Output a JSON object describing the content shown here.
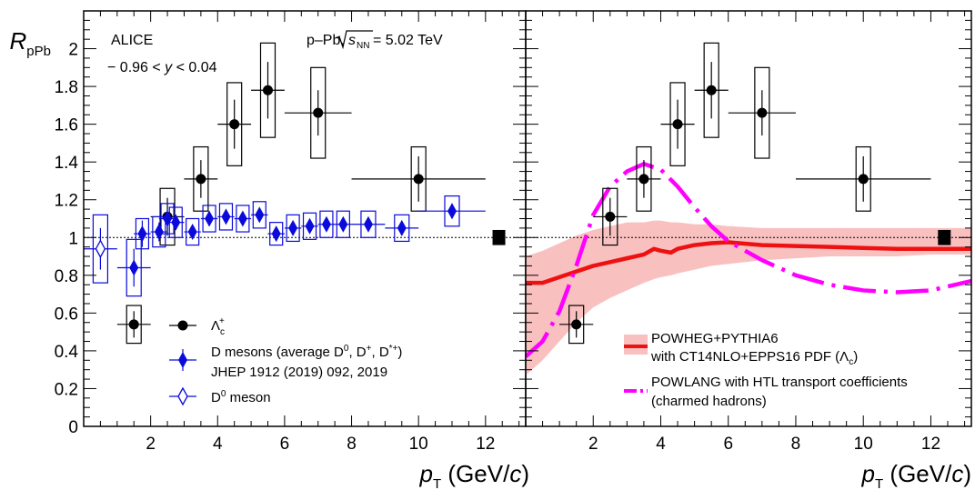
{
  "colors": {
    "lambda_c": "#000000",
    "d_mesons": "#0a0adc",
    "d0_meson": "#0a0adc",
    "powheg_line": "#ee1111",
    "powheg_band": "#f9c0c0",
    "powlang": "#ff00ff",
    "reference": "#000000"
  },
  "chart_data": [
    {
      "type": "scatter",
      "panel": "left",
      "ylabel": "R_pPb",
      "ylabel_main": "R",
      "ylabel_sub": "pPb",
      "xlabel": "p_T (GeV/c)",
      "xlabel_p": "p",
      "xlabel_sub": "T",
      "xlabel_unit_open": " (GeV/",
      "xlabel_unit_c": "c",
      "xlabel_unit_close": ")",
      "xlim": [
        0,
        13.2
      ],
      "ylim": [
        0,
        2.2
      ],
      "xticks": [
        2,
        4,
        6,
        8,
        10,
        12
      ],
      "xtick_labels": [
        "2",
        "4",
        "6",
        "8",
        "10",
        "12"
      ],
      "yticks": [
        0,
        0.2,
        0.4,
        0.6,
        0.8,
        1,
        1.2,
        1.4,
        1.6,
        1.8,
        2
      ],
      "ytick_labels": [
        "0",
        "0.2",
        "0.4",
        "0.6",
        "0.8",
        "1",
        "1.2",
        "1.4",
        "1.6",
        "1.8",
        "2"
      ],
      "reference_line": 1,
      "global_uncertainty_box": {
        "x": 12.4,
        "ylow": 0.96,
        "yhigh": 1.04
      },
      "annotations": {
        "alice": "ALICE",
        "rapidity_prefix": "− 0.96 < ",
        "rapidity_var": "y",
        "rapidity_suffix": " < 0.04",
        "system_prefix": "p–Pb, ",
        "system_s": "s",
        "system_s_sub": "NN",
        "system_suffix": " = 5.02 TeV"
      },
      "legend": {
        "placement": "bottom-center",
        "lambda_main": "Λ",
        "lambda_sub": "c",
        "lambda_sup": "+",
        "dmes_prefix": "D mesons (average D",
        "dmes_sup1": "0",
        "dmes_mid1": ", D",
        "dmes_sup2": "+",
        "dmes_mid2": ", D",
        "dmes_sup3": "*+",
        "dmes_suffix": ")",
        "dmes_ref": "JHEP 1912 (2019) 092, 2019",
        "d0_prefix": "D",
        "d0_sup": "0",
        "d0_suffix": " meson"
      },
      "series": [
        {
          "name": "Λc+",
          "marker": "circle",
          "points": [
            {
              "x": 1.5,
              "y": 0.54,
              "xerr": 0.5,
              "stat": 0.07,
              "syst": 0.1
            },
            {
              "x": 2.5,
              "y": 1.11,
              "xerr": 0.5,
              "stat": 0.1,
              "syst": 0.15
            },
            {
              "x": 3.5,
              "y": 1.31,
              "xerr": 0.5,
              "stat": 0.1,
              "syst": 0.17
            },
            {
              "x": 4.5,
              "y": 1.6,
              "xerr": 0.5,
              "stat": 0.13,
              "syst": 0.22
            },
            {
              "x": 5.5,
              "y": 1.78,
              "xerr": 0.5,
              "stat": 0.15,
              "syst": 0.25
            },
            {
              "x": 7.0,
              "y": 1.66,
              "xerr": 1.0,
              "stat": 0.12,
              "syst": 0.24
            },
            {
              "x": 10.0,
              "y": 1.31,
              "xerr": 2.0,
              "stat": 0.12,
              "syst": 0.17
            }
          ]
        },
        {
          "name": "D mesons (average D0, D+, D*+)",
          "marker": "diamond",
          "points": [
            {
              "x": 1.5,
              "y": 0.84,
              "xerr": 0.5,
              "stat": 0.1,
              "syst": 0.15
            },
            {
              "x": 1.75,
              "y": 1.02,
              "xerr": 0.25,
              "stat": 0.07,
              "syst": 0.08
            },
            {
              "x": 2.25,
              "y": 1.03,
              "xerr": 0.25,
              "stat": 0.05,
              "syst": 0.08
            },
            {
              "x": 2.5,
              "y": 1.1,
              "xerr": 0.25,
              "stat": 0.05,
              "syst": 0.08
            },
            {
              "x": 2.75,
              "y": 1.08,
              "xerr": 0.25,
              "stat": 0.04,
              "syst": 0.08
            },
            {
              "x": 3.25,
              "y": 1.03,
              "xerr": 0.25,
              "stat": 0.03,
              "syst": 0.07
            },
            {
              "x": 3.75,
              "y": 1.1,
              "xerr": 0.25,
              "stat": 0.03,
              "syst": 0.07
            },
            {
              "x": 4.25,
              "y": 1.11,
              "xerr": 0.25,
              "stat": 0.03,
              "syst": 0.07
            },
            {
              "x": 4.75,
              "y": 1.1,
              "xerr": 0.25,
              "stat": 0.03,
              "syst": 0.07
            },
            {
              "x": 5.25,
              "y": 1.12,
              "xerr": 0.25,
              "stat": 0.03,
              "syst": 0.07
            },
            {
              "x": 5.75,
              "y": 1.02,
              "xerr": 0.25,
              "stat": 0.03,
              "syst": 0.06
            },
            {
              "x": 6.25,
              "y": 1.05,
              "xerr": 0.25,
              "stat": 0.03,
              "syst": 0.07
            },
            {
              "x": 6.75,
              "y": 1.06,
              "xerr": 0.25,
              "stat": 0.03,
              "syst": 0.07
            },
            {
              "x": 7.25,
              "y": 1.07,
              "xerr": 0.25,
              "stat": 0.03,
              "syst": 0.07
            },
            {
              "x": 7.75,
              "y": 1.07,
              "xerr": 0.25,
              "stat": 0.03,
              "syst": 0.07
            },
            {
              "x": 8.5,
              "y": 1.07,
              "xerr": 0.5,
              "stat": 0.03,
              "syst": 0.07
            },
            {
              "x": 9.5,
              "y": 1.05,
              "xerr": 0.5,
              "stat": 0.03,
              "syst": 0.07
            },
            {
              "x": 11.0,
              "y": 1.14,
              "xerr": 1.0,
              "stat": 0.04,
              "syst": 0.08
            }
          ]
        },
        {
          "name": "D0 meson",
          "marker": "open-diamond",
          "points": [
            {
              "x": 0.5,
              "y": 0.94,
              "xerr": 0.5,
              "stat": 0.11,
              "syst": 0.18
            }
          ]
        }
      ]
    },
    {
      "type": "line",
      "panel": "right",
      "xlabel": "p_T (GeV/c)",
      "xlim": [
        0,
        13.2
      ],
      "ylim": [
        0,
        2.2
      ],
      "xticks": [
        2,
        4,
        6,
        8,
        10,
        12
      ],
      "xtick_labels": [
        "2",
        "4",
        "6",
        "8",
        "10",
        "12"
      ],
      "reference_line": 1,
      "global_uncertainty_box": {
        "x": 12.4,
        "ylow": 0.96,
        "yhigh": 1.04
      },
      "legend": {
        "placement": "bottom-right",
        "powheg_line1": "POWHEG+PYTHIA6",
        "powheg_line2_prefix": "with CT14NLO+EPPS16 PDF (",
        "powheg_line2_lambda": "Λ",
        "powheg_line2_sub": "c",
        "powheg_line2_suffix": ")",
        "powlang_line1": "POWLANG with HTL transport coefficients",
        "powlang_line2": "(charmed hadrons)"
      },
      "series": [
        {
          "name": "Λc+",
          "marker": "circle",
          "points": [
            {
              "x": 1.5,
              "y": 0.54,
              "xerr": 0.5,
              "stat": 0.07,
              "syst": 0.1
            },
            {
              "x": 2.5,
              "y": 1.11,
              "xerr": 0.5,
              "stat": 0.1,
              "syst": 0.15
            },
            {
              "x": 3.5,
              "y": 1.31,
              "xerr": 0.5,
              "stat": 0.1,
              "syst": 0.17
            },
            {
              "x": 4.5,
              "y": 1.6,
              "xerr": 0.5,
              "stat": 0.13,
              "syst": 0.22
            },
            {
              "x": 5.5,
              "y": 1.78,
              "xerr": 0.5,
              "stat": 0.15,
              "syst": 0.25
            },
            {
              "x": 7.0,
              "y": 1.66,
              "xerr": 1.0,
              "stat": 0.12,
              "syst": 0.24
            },
            {
              "x": 10.0,
              "y": 1.31,
              "xerr": 2.0,
              "stat": 0.12,
              "syst": 0.17
            }
          ]
        },
        {
          "name": "POWHEG+PYTHIA6 with CT14NLO+EPPS16 PDF (Λc)",
          "style": "solid-with-band",
          "x": [
            0.0,
            0.5,
            1.0,
            1.5,
            2.0,
            2.5,
            3.0,
            3.5,
            3.8,
            4.0,
            4.3,
            4.5,
            5.0,
            5.5,
            6.0,
            7.0,
            8.0,
            9.0,
            10.0,
            11.0,
            12.0,
            13.2
          ],
          "y": [
            0.76,
            0.76,
            0.79,
            0.82,
            0.85,
            0.87,
            0.89,
            0.91,
            0.94,
            0.93,
            0.92,
            0.94,
            0.96,
            0.97,
            0.975,
            0.96,
            0.955,
            0.95,
            0.945,
            0.94,
            0.94,
            0.94
          ],
          "y_low": [
            0.27,
            0.35,
            0.45,
            0.55,
            0.63,
            0.68,
            0.72,
            0.76,
            0.78,
            0.79,
            0.8,
            0.81,
            0.83,
            0.85,
            0.86,
            0.88,
            0.89,
            0.9,
            0.9,
            0.9,
            0.91,
            0.91
          ],
          "y_high": [
            0.9,
            0.93,
            0.97,
            1.01,
            1.04,
            1.06,
            1.08,
            1.08,
            1.09,
            1.09,
            1.08,
            1.08,
            1.07,
            1.07,
            1.06,
            1.05,
            1.05,
            1.05,
            1.05,
            1.05,
            1.05,
            1.05
          ]
        },
        {
          "name": "POWLANG with HTL transport coefficients (charmed hadrons)",
          "style": "long-dash-dot",
          "x": [
            0.0,
            0.5,
            1.0,
            1.5,
            2.0,
            2.5,
            3.0,
            3.5,
            4.0,
            4.5,
            5.0,
            5.5,
            6.0,
            7.0,
            8.0,
            9.0,
            10.0,
            11.0,
            12.0,
            13.2
          ],
          "y": [
            0.37,
            0.45,
            0.61,
            0.85,
            1.12,
            1.27,
            1.35,
            1.39,
            1.36,
            1.27,
            1.16,
            1.06,
            0.98,
            0.88,
            0.8,
            0.75,
            0.72,
            0.71,
            0.72,
            0.77
          ]
        }
      ]
    }
  ]
}
